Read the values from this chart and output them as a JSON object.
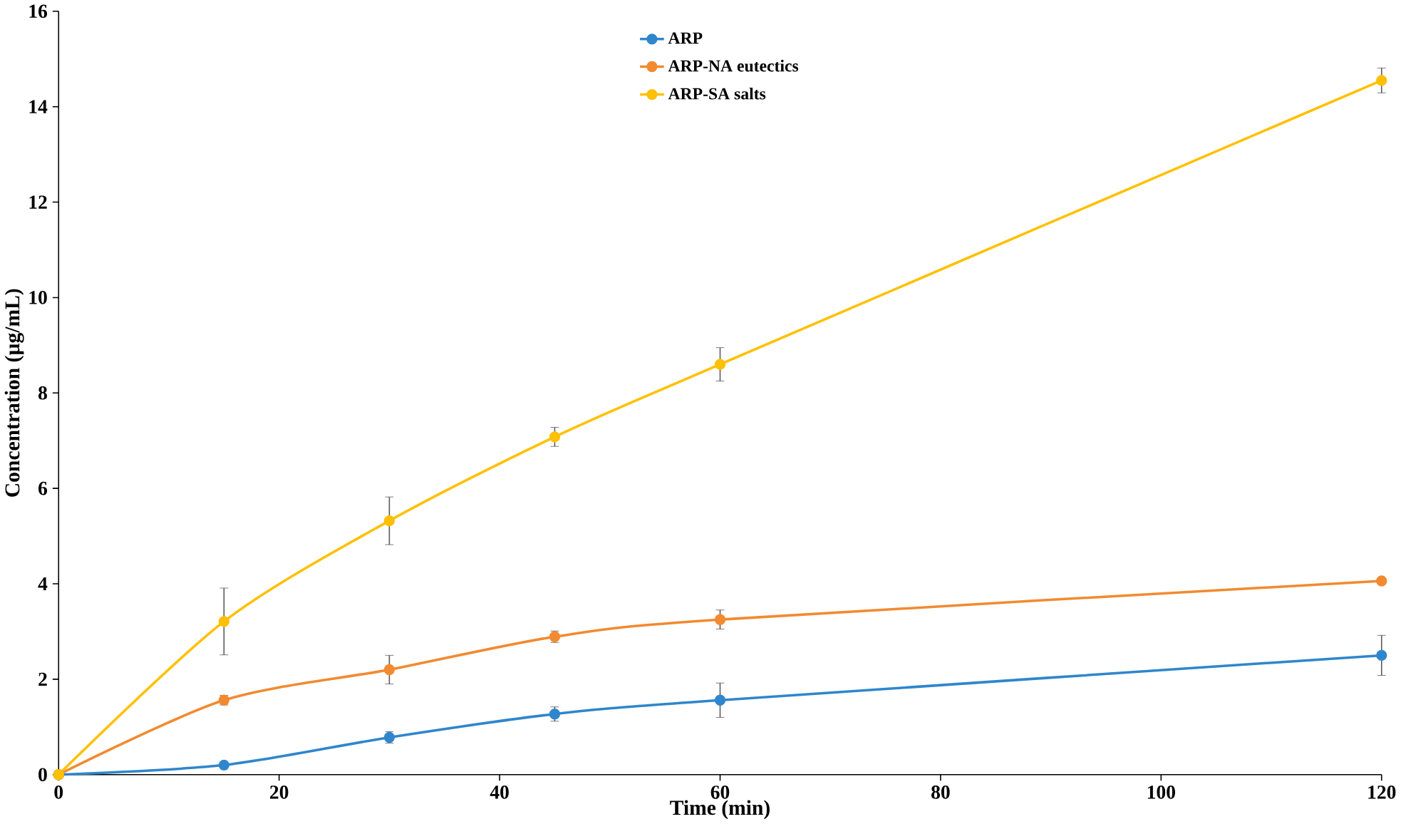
{
  "chart_data": {
    "type": "line",
    "xlabel": "Time (min)",
    "ylabel": "Concentration (µg/mL)",
    "x": [
      0,
      15,
      30,
      45,
      60,
      120
    ],
    "series": [
      {
        "name": "ARP",
        "color": "#2f86cc",
        "values": [
          0,
          0.2,
          0.78,
          1.27,
          1.56,
          2.5
        ],
        "errors": [
          null,
          0.05,
          0.12,
          0.15,
          0.36,
          0.42
        ]
      },
      {
        "name": "ARP-NA eutectics",
        "color": "#f28a30",
        "values": [
          0,
          1.56,
          2.2,
          2.89,
          3.25,
          4.06
        ],
        "errors": [
          null,
          0.1,
          0.3,
          0.12,
          0.2,
          0.05
        ]
      },
      {
        "name": "ARP-SA salts",
        "color": "#ffc000",
        "values": [
          0,
          3.21,
          5.32,
          7.08,
          8.6,
          14.55
        ],
        "errors": [
          null,
          0.7,
          0.5,
          0.2,
          0.35,
          0.26
        ]
      }
    ],
    "xlim": [
      0,
      120
    ],
    "ylim": [
      0,
      16
    ],
    "xticks": [
      0,
      20,
      40,
      60,
      80,
      100,
      120
    ],
    "yticks": [
      0,
      2,
      4,
      6,
      8,
      10,
      12,
      14,
      16
    ],
    "grid": false,
    "legend": "top",
    "marker": "circle",
    "line_style": "solid"
  }
}
